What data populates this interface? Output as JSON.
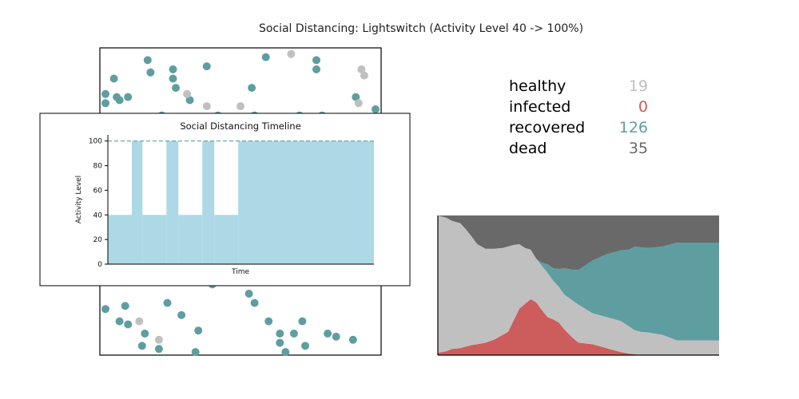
{
  "figure": {
    "title": "Social Distancing: Lightswitch (Activity Level 40 -> 100%)"
  },
  "colors": {
    "healthy": "#c0c0c0",
    "infected": "#cd5c5c",
    "recovered": "#5f9ea0",
    "dead": "#696969",
    "activity_fill": "#add8e6"
  },
  "stats": [
    {
      "label": "healthy",
      "value": "19",
      "color": "#c0c0c0"
    },
    {
      "label": "infected",
      "value": "0",
      "color": "#cd5c5c"
    },
    {
      "label": "recovered",
      "value": "126",
      "color": "#5f9ea0"
    },
    {
      "label": "dead",
      "value": "35",
      "color": "#696969"
    }
  ],
  "chart_data": [
    {
      "type": "scatter",
      "title": "",
      "grid": false,
      "series": [
        {
          "status": "recovered",
          "color": "#5f9ea0",
          "points": [
            [
              0.17,
              0.96
            ],
            [
              0.59,
              0.97
            ],
            [
              0.77,
              0.96
            ],
            [
              0.05,
              0.9
            ],
            [
              0.18,
              0.92
            ],
            [
              0.26,
              0.93
            ],
            [
              0.38,
              0.94
            ],
            [
              0.77,
              0.93
            ],
            [
              0.26,
              0.9
            ],
            [
              0.27,
              0.87
            ],
            [
              0.54,
              0.87
            ],
            [
              0.02,
              0.85
            ],
            [
              0.06,
              0.84
            ],
            [
              0.07,
              0.83
            ],
            [
              0.1,
              0.84
            ],
            [
              0.91,
              0.84
            ],
            [
              0.02,
              0.82
            ],
            [
              0.32,
              0.83
            ],
            [
              0.98,
              0.8
            ],
            [
              0.22,
              0.78
            ],
            [
              0.42,
              0.78
            ],
            [
              0.55,
              0.78
            ],
            [
              0.6,
              0.75
            ],
            [
              0.71,
              0.78
            ],
            [
              0.79,
              0.78
            ],
            [
              0.86,
              0.77
            ],
            [
              0.02,
              0.15
            ],
            [
              0.09,
              0.16
            ],
            [
              0.1,
              0.1
            ],
            [
              0.24,
              0.17
            ],
            [
              0.4,
              0.23
            ],
            [
              0.53,
              0.2
            ],
            [
              0.55,
              0.17
            ],
            [
              0.07,
              0.11
            ],
            [
              0.16,
              0.07
            ],
            [
              0.29,
              0.13
            ],
            [
              0.35,
              0.08
            ],
            [
              0.6,
              0.11
            ],
            [
              0.64,
              0.07
            ],
            [
              0.69,
              0.07
            ],
            [
              0.72,
              0.11
            ],
            [
              0.81,
              0.07
            ],
            [
              0.84,
              0.06
            ],
            [
              0.73,
              0.03
            ],
            [
              0.9,
              0.05
            ],
            [
              0.21,
              0.02
            ],
            [
              0.66,
              0.01
            ],
            [
              0.34,
              0.01
            ],
            [
              0.64,
              0.04
            ],
            [
              0.15,
              0.03
            ]
          ]
        },
        {
          "status": "healthy",
          "color": "#c0c0c0",
          "points": [
            [
              0.68,
              0.98
            ],
            [
              0.93,
              0.93
            ],
            [
              0.94,
              0.91
            ],
            [
              0.31,
              0.85
            ],
            [
              0.92,
              0.82
            ],
            [
              0.38,
              0.81
            ],
            [
              0.5,
              0.81
            ],
            [
              0.14,
              0.11
            ],
            [
              0.21,
              0.05
            ]
          ]
        },
        {
          "status": "dead",
          "color": "#696969",
          "points": []
        }
      ]
    },
    {
      "type": "area",
      "title": "Social Distancing Timeline",
      "xlabel": "Time",
      "ylabel": "Activity Level",
      "ylim": [
        0,
        105
      ],
      "xlim": [
        0,
        100
      ],
      "yticks": [
        0,
        20,
        40,
        60,
        80,
        100
      ],
      "reference_line": 100,
      "segments": [
        {
          "x0": 0,
          "x1": 9,
          "value": 40
        },
        {
          "x0": 9,
          "x1": 13,
          "value": 100
        },
        {
          "x0": 13,
          "x1": 22,
          "value": 40
        },
        {
          "x0": 22,
          "x1": 26.5,
          "value": 100
        },
        {
          "x0": 26.5,
          "x1": 35.5,
          "value": 40
        },
        {
          "x0": 35.5,
          "x1": 40,
          "value": 100
        },
        {
          "x0": 40,
          "x1": 49,
          "value": 40
        },
        {
          "x0": 49,
          "x1": 100,
          "value": 100
        }
      ]
    },
    {
      "type": "area",
      "title": "",
      "stacked": true,
      "order_bottom_to_top": [
        "infected",
        "healthy",
        "recovered",
        "dead"
      ],
      "ylim": [
        0,
        180
      ],
      "xlim": [
        0,
        100
      ],
      "x": [
        0,
        3,
        5,
        8,
        10,
        12,
        14,
        17,
        20,
        23,
        25,
        27,
        29,
        31,
        33,
        35,
        37,
        39,
        41,
        43,
        45,
        48,
        50,
        55,
        60,
        65,
        68,
        70,
        72,
        75,
        80,
        85,
        90,
        95,
        100
      ],
      "infected": [
        3,
        5,
        8,
        9,
        11,
        13,
        14,
        16,
        20,
        26,
        30,
        45,
        60,
        66,
        72,
        68,
        58,
        49,
        46,
        42,
        33,
        22,
        16,
        14,
        9,
        4,
        2,
        1,
        0,
        0,
        0,
        0,
        0,
        0,
        0
      ],
      "healthy": [
        177,
        172,
        165,
        161,
        151,
        140,
        129,
        121,
        117,
        112,
        110,
        97,
        83,
        72,
        64,
        56,
        57,
        57,
        50,
        46,
        45,
        48,
        49,
        40,
        40,
        40,
        35,
        31,
        30,
        29,
        26,
        19,
        19,
        19,
        19
      ],
      "recovered": [
        0,
        0,
        0,
        0,
        0,
        0,
        0,
        0,
        0,
        0,
        0,
        0,
        0,
        0,
        0,
        0,
        4,
        11,
        16,
        23,
        34,
        40,
        45,
        68,
        81,
        91,
        99,
        108,
        109,
        109,
        114,
        126,
        126,
        126,
        126
      ],
      "dead": [
        0,
        3,
        7,
        10,
        18,
        27,
        37,
        43,
        43,
        42,
        40,
        38,
        37,
        42,
        44,
        56,
        61,
        63,
        68,
        69,
        68,
        70,
        70,
        58,
        50,
        45,
        44,
        40,
        41,
        42,
        40,
        35,
        35,
        35,
        35
      ]
    }
  ]
}
